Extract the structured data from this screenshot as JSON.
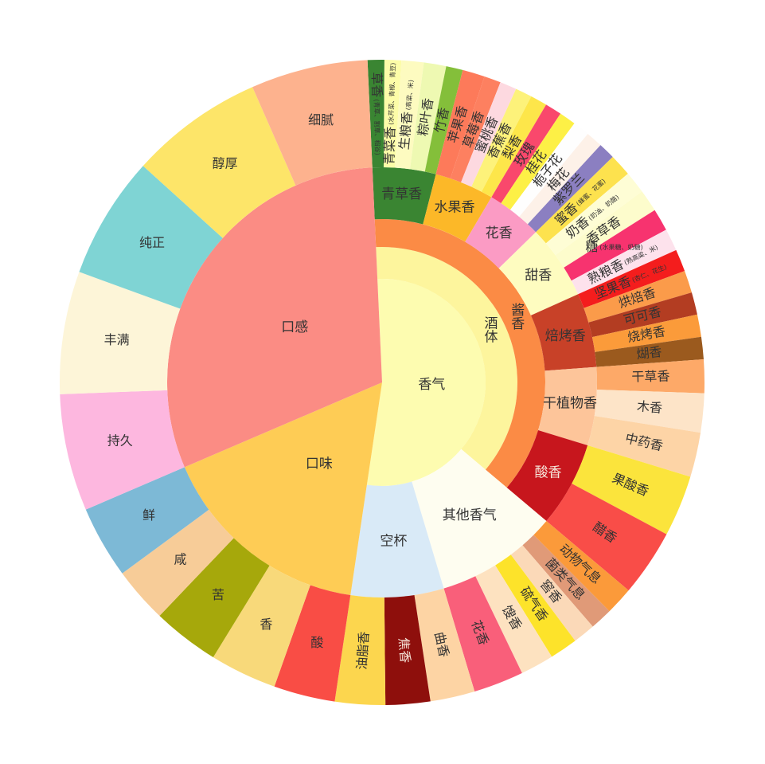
{
  "chart_data": {
    "type": "sunburst",
    "data": [
      {
        "name": "香气",
        "color": "#fdfcb0",
        "children": [
          {
            "name": "酒体",
            "color": "#fdf59d",
            "children": [
              {
                "name": "酱香",
                "color": "#fb8b45",
                "children": [
                  {
                    "name": "青草香",
                    "color": "#3a8532",
                    "children": [
                      {
                        "name": "草香",
                        "note": "(青草、割草、稻谷)",
                        "color": "#3a8532",
                        "value": 3
                      },
                      {
                        "name": "青菜香",
                        "note": "(水芹菜、青椒、青豆)",
                        "color": "#fcfca8",
                        "value": 3
                      },
                      {
                        "name": "生粮香",
                        "note": "(高粱、米)",
                        "color": "#fdfbc0",
                        "value": 4
                      },
                      {
                        "name": "粽叶香",
                        "color": "#eef9b2",
                        "value": 4
                      },
                      {
                        "name": "竹香",
                        "color": "#84bf3a",
                        "value": 3
                      }
                    ]
                  },
                  {
                    "name": "水果香",
                    "color": "#fcb828",
                    "children": [
                      {
                        "name": "苹果香",
                        "color": "#fd7a5a",
                        "value": 4
                      },
                      {
                        "name": "草莓香",
                        "color": "#fd8060",
                        "value": 3
                      },
                      {
                        "name": "蜜桃香",
                        "color": "#fdd9e0",
                        "value": 3
                      },
                      {
                        "name": "香蕉香",
                        "color": "#fdf27a",
                        "value": 3
                      },
                      {
                        "name": "梨香",
                        "color": "#fde64a",
                        "value": 3
                      }
                    ]
                  },
                  {
                    "name": "花香",
                    "color": "#fb9bc4",
                    "children": [
                      {
                        "name": "玫瑰",
                        "color": "#f9486c",
                        "value": 3
                      },
                      {
                        "name": "桂花",
                        "color": "#fdf046",
                        "value": 3
                      },
                      {
                        "name": "栀子花",
                        "color": "#fefefe",
                        "value": 3
                      },
                      {
                        "name": "梅花",
                        "color": "#fdf1e8",
                        "value": 3
                      },
                      {
                        "name": "紫罗兰",
                        "color": "#8b7fc1",
                        "value": 3
                      }
                    ]
                  },
                  {
                    "name": "甜香",
                    "color": "#fefcc0",
                    "children": [
                      {
                        "name": "蜜香",
                        "note": "(蜂蜜、花蜜)",
                        "color": "#fde24e",
                        "value": 4
                      },
                      {
                        "name": "奶香",
                        "note": "(奶油、奶酪)",
                        "color": "#fefdd5",
                        "value": 4
                      },
                      {
                        "name": "香草香",
                        "color": "#fdfccc",
                        "value": 4
                      },
                      {
                        "name": "糖",
                        "note": "(水果糖、奶糖)",
                        "color": "#f7336f",
                        "value": 4
                      },
                      {
                        "name": "熟粮香",
                        "note": "(熟高粱、米)",
                        "color": "#fde2ec",
                        "value": 4
                      }
                    ]
                  },
                  {
                    "name": "焙烤香",
                    "color": "#c84128",
                    "children": [
                      {
                        "name": "坚果香",
                        "note": "(杏仁、花生)",
                        "color": "#f41d1d",
                        "value": 4
                      },
                      {
                        "name": "烘焙香",
                        "color": "#fb9b4a",
                        "value": 4
                      },
                      {
                        "name": "可可香",
                        "color": "#b33d22",
                        "value": 4
                      },
                      {
                        "name": "烧烤香",
                        "color": "#fb9b3a",
                        "value": 4
                      },
                      {
                        "name": "煳香",
                        "color": "#9b5a1e",
                        "value": 4
                      }
                    ]
                  },
                  {
                    "name": "干植物香",
                    "color": "#fdc59a",
                    "children": [
                      {
                        "name": "干草香",
                        "color": "#fda968",
                        "value": 6
                      },
                      {
                        "name": "木香",
                        "color": "#fde4c8",
                        "value": 7
                      },
                      {
                        "name": "中药香",
                        "color": "#fdd4a6",
                        "value": 8
                      }
                    ]
                  },
                  {
                    "name": "酸香",
                    "color": "#c7161d",
                    "children": [
                      {
                        "name": "果酸香",
                        "color": "#fbe43c",
                        "value": 11
                      },
                      {
                        "name": "醋香",
                        "color": "#f94d48",
                        "value": 12
                      }
                    ]
                  }
                ]
              }
            ]
          },
          {
            "name": "其他香气",
            "color": "#fefdf0",
            "children": [
              {
                "name": "动物气息",
                "color": "#fb9a3a",
                "value": 5
              },
              {
                "name": "菌类气息",
                "color": "#e09a78",
                "value": 4
              },
              {
                "name": "窖香",
                "color": "#fbd9b8",
                "value": 4
              },
              {
                "name": "硫气香",
                "color": "#fde32a",
                "value": 5
              },
              {
                "name": "馊香",
                "color": "#fde2c0",
                "value": 6
              },
              {
                "name": "花香",
                "color": "#f95f7a",
                "value": 9
              }
            ]
          },
          {
            "name": "空杯",
            "color": "#d9eaf7",
            "children": [
              {
                "name": "曲香",
                "color": "#fdd4a4",
                "value": 8
              },
              {
                "name": "焦香",
                "color": "#8e0f0c",
                "value": 8
              },
              {
                "name": "油脂香",
                "color": "#fcd64e",
                "value": 9
              }
            ]
          }
        ]
      },
      {
        "name": "口味",
        "color": "#fecc55",
        "children": [
          {
            "name": "酸",
            "color": "#f94d45",
            "value": 11
          },
          {
            "name": "香",
            "color": "#f8d97a",
            "value": 12
          },
          {
            "name": "苦",
            "color": "#a6a80b",
            "value": 12
          },
          {
            "name": "咸",
            "color": "#f7cc98",
            "value": 10
          },
          {
            "name": "鲜",
            "color": "#7db9d6",
            "value": 13
          }
        ]
      },
      {
        "name": "口感",
        "color": "#fb8c84",
        "children": [
          {
            "name": "持久",
            "color": "#fdb7df",
            "value": 21
          },
          {
            "name": "丰满",
            "color": "#fdf5d8",
            "value": 22
          },
          {
            "name": "纯正",
            "color": "#7fd4d4",
            "value": 22
          },
          {
            "name": "醇厚",
            "color": "#fde569",
            "value": 24
          },
          {
            "name": "细腻",
            "color": "#fdb28e",
            "value": 21
          }
        ]
      }
    ]
  }
}
